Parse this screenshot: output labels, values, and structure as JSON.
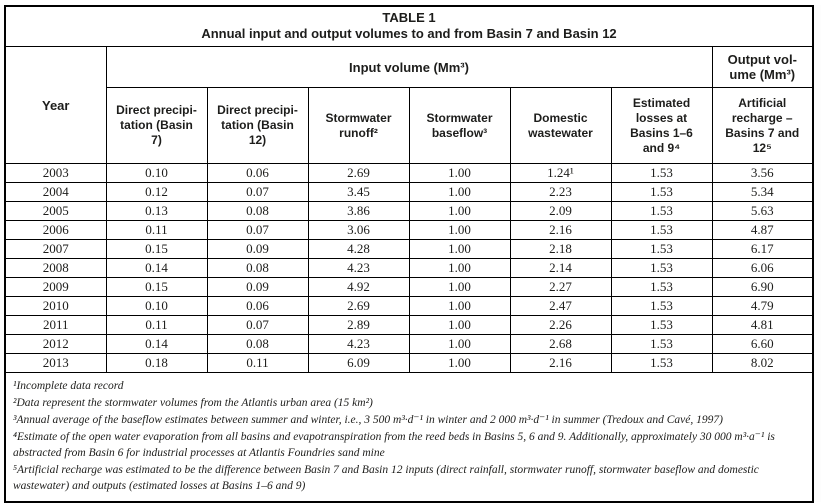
{
  "page": {
    "background_color": "#ffffff",
    "text_color": "#1d1d1b",
    "border_color": "#000000"
  },
  "table": {
    "title_line1": "TABLE 1",
    "title_line2": "Annual input and output volumes to and from Basin 7 and Basin 12",
    "year_header": "Year",
    "input_group_header": "Input volume (Mm³)",
    "output_group_header": "Output vol-\nume (Mm³)",
    "column_headers": [
      "Direct precipi-\ntation (Basin\n7)",
      "Direct precipi-\ntation (Basin\n12)",
      "Stormwater\nrunoff²",
      "Stormwater\nbaseflow³",
      "Domestic\nwastewater",
      "Estimated\nlosses at\nBasins 1–6\nand 9⁴",
      "Artificial\nrecharge –\nBasins 7 and\n12⁵"
    ],
    "rows": [
      [
        "2003",
        "0.10",
        "0.06",
        "2.69",
        "1.00",
        "1.24¹",
        "1.53",
        "3.56"
      ],
      [
        "2004",
        "0.12",
        "0.07",
        "3.45",
        "1.00",
        "2.23",
        "1.53",
        "5.34"
      ],
      [
        "2005",
        "0.13",
        "0.08",
        "3.86",
        "1.00",
        "2.09",
        "1.53",
        "5.63"
      ],
      [
        "2006",
        "0.11",
        "0.07",
        "3.06",
        "1.00",
        "2.16",
        "1.53",
        "4.87"
      ],
      [
        "2007",
        "0.15",
        "0.09",
        "4.28",
        "1.00",
        "2.18",
        "1.53",
        "6.17"
      ],
      [
        "2008",
        "0.14",
        "0.08",
        "4.23",
        "1.00",
        "2.14",
        "1.53",
        "6.06"
      ],
      [
        "2009",
        "0.15",
        "0.09",
        "4.92",
        "1.00",
        "2.27",
        "1.53",
        "6.90"
      ],
      [
        "2010",
        "0.10",
        "0.06",
        "2.69",
        "1.00",
        "2.47",
        "1.53",
        "4.79"
      ],
      [
        "2011",
        "0.11",
        "0.07",
        "2.89",
        "1.00",
        "2.26",
        "1.53",
        "4.81"
      ],
      [
        "2012",
        "0.14",
        "0.08",
        "4.23",
        "1.00",
        "2.68",
        "1.53",
        "6.60"
      ],
      [
        "2013",
        "0.18",
        "0.11",
        "6.09",
        "1.00",
        "2.16",
        "1.53",
        "8.02"
      ]
    ],
    "footnotes": [
      "¹Incomplete data record",
      "²Data represent the stormwater volumes from the Atlantis urban area (15 km²)",
      "³Annual average of the baseflow estimates between summer and winter, i.e., 3 500 m³·d⁻¹ in winter and 2 000 m³·d⁻¹ in summer (Tredoux and Cavé, 1997)",
      "⁴Estimate of the open water evaporation from all basins and evapotranspiration from the reed beds in Basins 5, 6 and 9. Additionally, approximately 30 000 m³·a⁻¹ is abstracted from Basin 6 for industrial processes at Atlantis Foundries sand mine",
      "⁵Artificial recharge was estimated to be the difference between Basin 7 and Basin 12 inputs (direct rainfall, stormwater runoff, stormwater baseflow and domestic wastewater) and outputs (estimated losses at Basins 1–6 and 9)"
    ]
  }
}
